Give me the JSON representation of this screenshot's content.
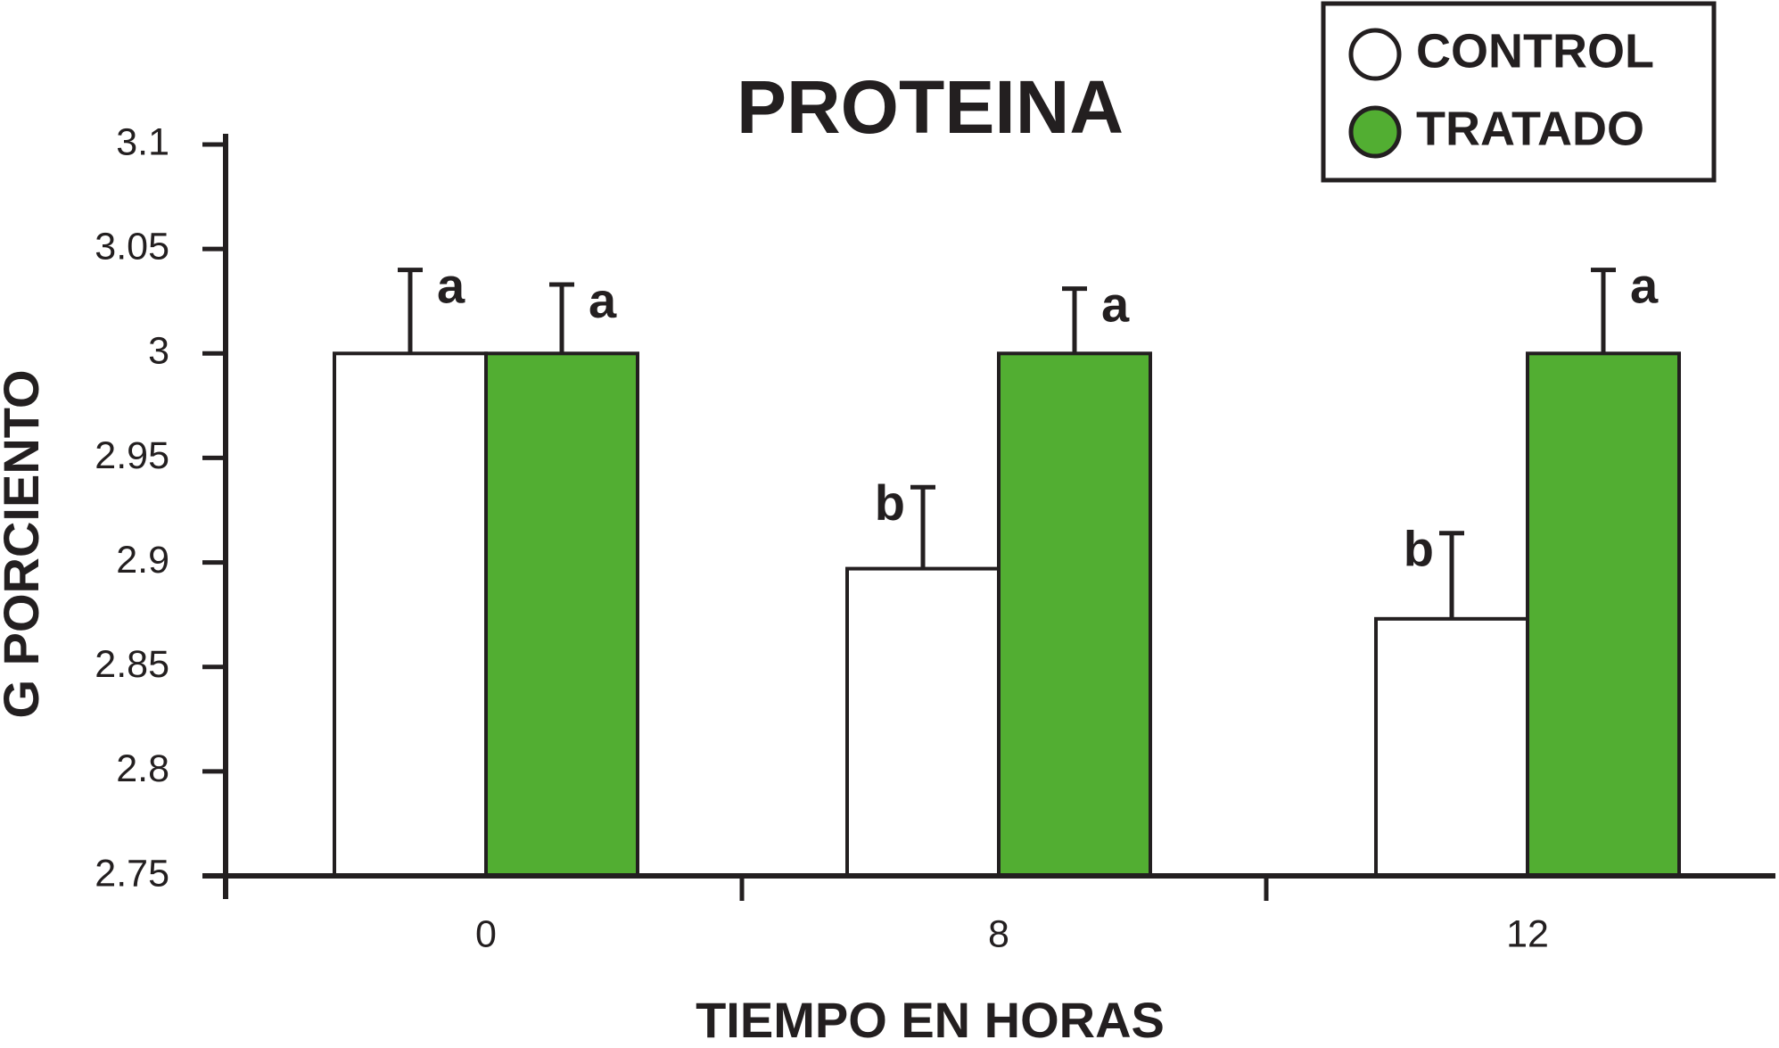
{
  "chart_data": {
    "type": "bar",
    "title": "PROTEINA",
    "x_label": "TIEMPO EN HORAS",
    "y_label": "G PORCIENTO",
    "categories": [
      "0",
      "8",
      "12"
    ],
    "series": [
      {
        "name": "CONTROL",
        "color": "#ffffff",
        "values": [
          3.0,
          2.897,
          2.873
        ],
        "errors": [
          0.04,
          0.039,
          0.041
        ],
        "labels": [
          "a",
          "b",
          "b"
        ]
      },
      {
        "name": "TRATADO",
        "color": "#52ae32",
        "values": [
          3.0,
          3.0,
          3.0
        ],
        "errors": [
          0.033,
          0.031,
          0.04
        ],
        "labels": [
          "a",
          "a",
          "a"
        ]
      }
    ],
    "ylim": [
      2.75,
      3.1
    ],
    "yticks": [
      2.75,
      2.8,
      2.85,
      2.9,
      2.95,
      3,
      3.05,
      3.1
    ],
    "legend": "upper right"
  }
}
